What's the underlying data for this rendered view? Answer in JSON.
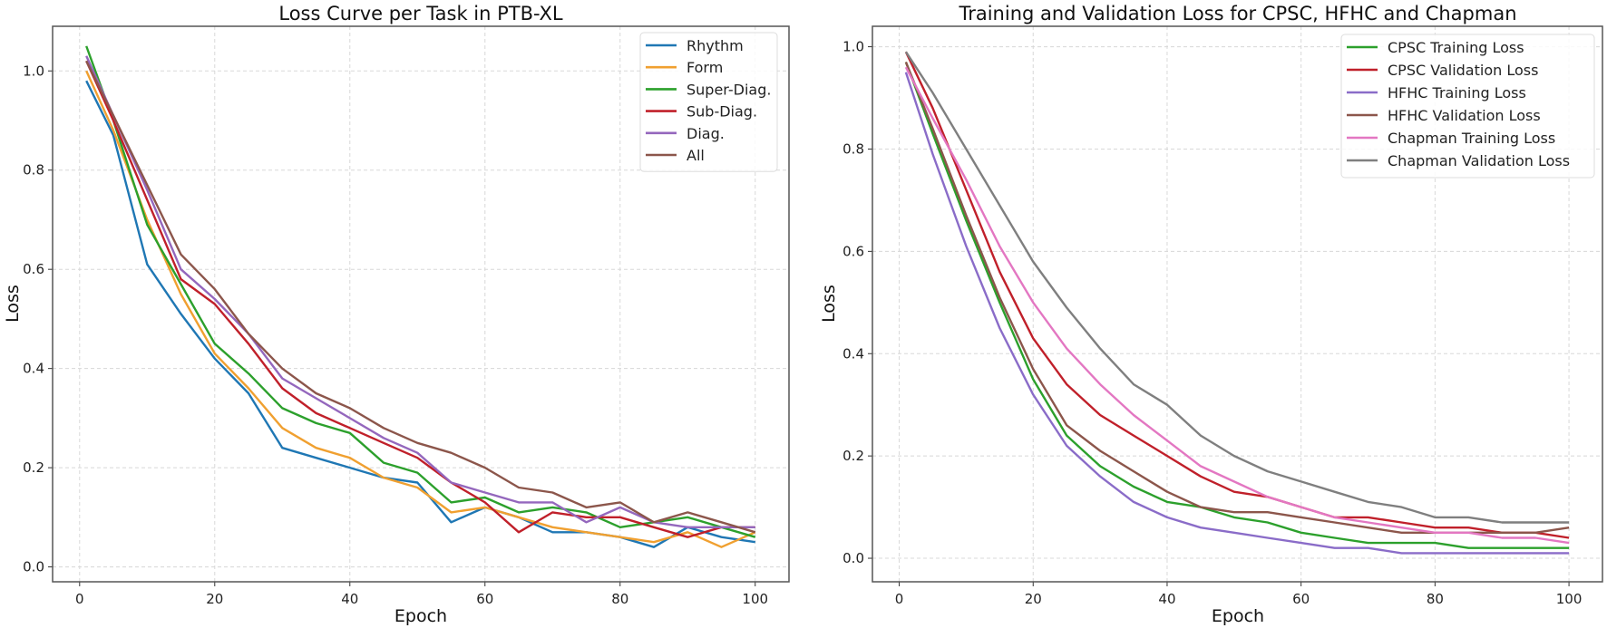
{
  "chart_data": [
    {
      "type": "line",
      "title": "Loss Curve per Task in PTB-XL",
      "xlabel": "Epoch",
      "ylabel": "Loss",
      "xlim": [
        -4,
        105
      ],
      "ylim": [
        -0.03,
        1.09
      ],
      "xticks": [
        0,
        20,
        40,
        60,
        80,
        100
      ],
      "yticks": [
        0.0,
        0.2,
        0.4,
        0.6,
        0.8,
        1.0
      ],
      "grid": true,
      "legend_position": "top-right",
      "x": [
        1,
        5,
        10,
        15,
        20,
        25,
        30,
        35,
        40,
        45,
        50,
        55,
        60,
        65,
        70,
        75,
        80,
        85,
        90,
        95,
        100
      ],
      "series": [
        {
          "name": "Rhythm",
          "color": "#1f77b4",
          "values": [
            0.98,
            0.87,
            0.61,
            0.51,
            0.42,
            0.35,
            0.24,
            0.22,
            0.2,
            0.18,
            0.17,
            0.09,
            0.12,
            0.1,
            0.07,
            0.07,
            0.06,
            0.04,
            0.08,
            0.06,
            0.05
          ]
        },
        {
          "name": "Form",
          "color": "#f0a030",
          "values": [
            1.0,
            0.88,
            0.7,
            0.55,
            0.43,
            0.36,
            0.28,
            0.24,
            0.22,
            0.18,
            0.16,
            0.11,
            0.12,
            0.1,
            0.08,
            0.07,
            0.06,
            0.05,
            0.07,
            0.04,
            0.07
          ]
        },
        {
          "name": "Super-Diag.",
          "color": "#2ca02c",
          "values": [
            1.05,
            0.9,
            0.69,
            0.57,
            0.45,
            0.39,
            0.32,
            0.29,
            0.27,
            0.21,
            0.19,
            0.13,
            0.14,
            0.11,
            0.12,
            0.11,
            0.08,
            0.09,
            0.1,
            0.08,
            0.06
          ]
        },
        {
          "name": "Sub-Diag.",
          "color": "#c0202a",
          "values": [
            1.02,
            0.9,
            0.74,
            0.58,
            0.53,
            0.45,
            0.36,
            0.31,
            0.28,
            0.25,
            0.22,
            0.17,
            0.13,
            0.07,
            0.11,
            0.1,
            0.1,
            0.08,
            0.06,
            0.08,
            0.08
          ]
        },
        {
          "name": "Diag.",
          "color": "#9467bd",
          "values": [
            1.03,
            0.91,
            0.76,
            0.6,
            0.54,
            0.47,
            0.38,
            0.34,
            0.3,
            0.26,
            0.23,
            0.17,
            0.15,
            0.13,
            0.13,
            0.09,
            0.12,
            0.09,
            0.08,
            0.08,
            0.08
          ]
        },
        {
          "name": "All",
          "color": "#8c564b",
          "values": [
            1.02,
            0.91,
            0.77,
            0.63,
            0.56,
            0.47,
            0.4,
            0.35,
            0.32,
            0.28,
            0.25,
            0.23,
            0.2,
            0.16,
            0.15,
            0.12,
            0.13,
            0.09,
            0.11,
            0.09,
            0.07
          ]
        }
      ]
    },
    {
      "type": "line",
      "title": "Training and Validation Loss for CPSC, HFHC and Chapman",
      "xlabel": "Epoch",
      "ylabel": "Loss",
      "xlim": [
        -4,
        105
      ],
      "ylim": [
        -0.046,
        1.04
      ],
      "xticks": [
        0,
        20,
        40,
        60,
        80,
        100
      ],
      "yticks": [
        0.0,
        0.2,
        0.4,
        0.6,
        0.8,
        1.0
      ],
      "grid": true,
      "legend_position": "top-right",
      "x": [
        1,
        5,
        10,
        15,
        20,
        25,
        30,
        35,
        40,
        45,
        50,
        55,
        60,
        65,
        70,
        75,
        80,
        85,
        90,
        95,
        100
      ],
      "series": [
        {
          "name": "CPSC Training Loss",
          "color": "#2ca02c",
          "values": [
            0.97,
            0.83,
            0.66,
            0.5,
            0.35,
            0.24,
            0.18,
            0.14,
            0.11,
            0.1,
            0.08,
            0.07,
            0.05,
            0.04,
            0.03,
            0.03,
            0.03,
            0.02,
            0.02,
            0.02,
            0.02
          ]
        },
        {
          "name": "CPSC Validation Loss",
          "color": "#c0202a",
          "values": [
            0.99,
            0.88,
            0.72,
            0.56,
            0.43,
            0.34,
            0.28,
            0.24,
            0.2,
            0.16,
            0.13,
            0.12,
            0.1,
            0.08,
            0.08,
            0.07,
            0.06,
            0.06,
            0.05,
            0.05,
            0.04
          ]
        },
        {
          "name": "HFHC Training Loss",
          "color": "#8a6cc8",
          "values": [
            0.95,
            0.79,
            0.61,
            0.45,
            0.32,
            0.22,
            0.16,
            0.11,
            0.08,
            0.06,
            0.05,
            0.04,
            0.03,
            0.02,
            0.02,
            0.01,
            0.01,
            0.01,
            0.01,
            0.01,
            0.01
          ]
        },
        {
          "name": "HFHC Validation Loss",
          "color": "#8c564b",
          "values": [
            0.97,
            0.84,
            0.67,
            0.51,
            0.37,
            0.26,
            0.21,
            0.17,
            0.13,
            0.1,
            0.09,
            0.09,
            0.08,
            0.07,
            0.06,
            0.05,
            0.05,
            0.05,
            0.05,
            0.05,
            0.06
          ]
        },
        {
          "name": "Chapman Training Loss",
          "color": "#e377c2",
          "values": [
            0.96,
            0.86,
            0.74,
            0.61,
            0.5,
            0.41,
            0.34,
            0.28,
            0.23,
            0.18,
            0.15,
            0.12,
            0.1,
            0.08,
            0.07,
            0.06,
            0.05,
            0.05,
            0.04,
            0.04,
            0.03
          ]
        },
        {
          "name": "Chapman Validation Loss",
          "color": "#7f7f7f",
          "values": [
            0.99,
            0.91,
            0.8,
            0.69,
            0.58,
            0.49,
            0.41,
            0.34,
            0.3,
            0.24,
            0.2,
            0.17,
            0.15,
            0.13,
            0.11,
            0.1,
            0.08,
            0.08,
            0.07,
            0.07,
            0.07
          ]
        }
      ]
    }
  ]
}
